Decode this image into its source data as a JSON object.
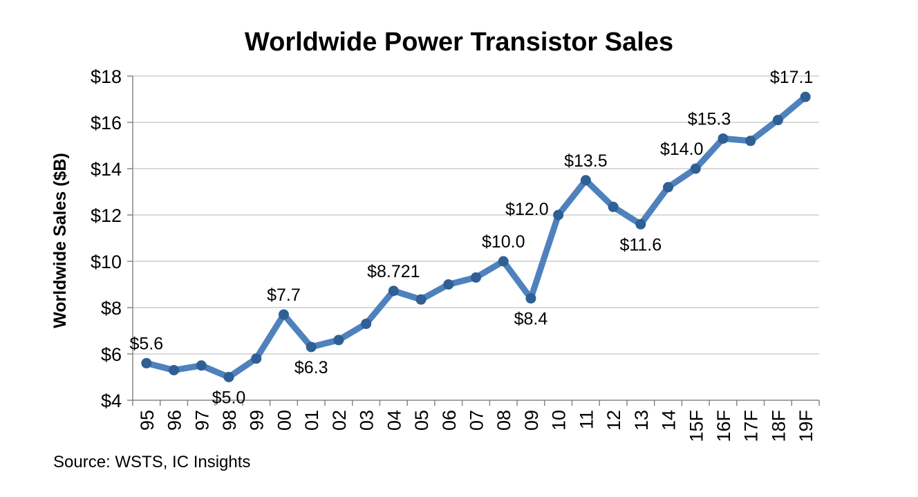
{
  "title": "Worldwide Power Transistor Sales",
  "source": "Source: WSTS, IC Insights",
  "colors": {
    "line": "#4f81bd",
    "marker": "#2f5f94",
    "grid": "#d9d9d9",
    "axis": "#868686",
    "text": "#000000"
  },
  "chart_data": {
    "type": "line",
    "title": "Worldwide Power Transistor Sales",
    "xlabel": "",
    "ylabel": "Worldwide Sales ($B)",
    "ylim": [
      4,
      18
    ],
    "ytick_step": 2,
    "ytick_labels": [
      "$4",
      "$6",
      "$8",
      "$10",
      "$12",
      "$14",
      "$16",
      "$18"
    ],
    "grid": true,
    "categories": [
      "95",
      "96",
      "97",
      "98",
      "99",
      "00",
      "01",
      "02",
      "03",
      "04",
      "05",
      "06",
      "07",
      "08",
      "09",
      "10",
      "11",
      "12",
      "13",
      "14",
      "15F",
      "16F",
      "17F",
      "18F",
      "19F"
    ],
    "series": [
      {
        "name": "Worldwide Sales",
        "values": [
          5.6,
          5.3,
          5.5,
          5.0,
          5.8,
          7.7,
          6.3,
          6.6,
          7.3,
          8.721,
          8.35,
          9.0,
          9.3,
          10.0,
          8.4,
          12.0,
          13.5,
          12.35,
          11.6,
          13.2,
          14.0,
          15.3,
          15.2,
          16.1,
          17.1
        ]
      }
    ],
    "data_labels": [
      {
        "index": 0,
        "text": "$5.6",
        "placement": "above"
      },
      {
        "index": 3,
        "text": "$5.0",
        "placement": "below"
      },
      {
        "index": 5,
        "text": "$7.7",
        "placement": "above"
      },
      {
        "index": 6,
        "text": "$6.3",
        "placement": "below"
      },
      {
        "index": 9,
        "text": "$8.721",
        "placement": "above"
      },
      {
        "index": 13,
        "text": "$10.0",
        "placement": "above"
      },
      {
        "index": 14,
        "text": "$8.4",
        "placement": "below"
      },
      {
        "index": 15,
        "text": "$12.0",
        "placement": "left"
      },
      {
        "index": 16,
        "text": "$13.5",
        "placement": "above"
      },
      {
        "index": 18,
        "text": "$11.6",
        "placement": "below"
      },
      {
        "index": 20,
        "text": "$14.0",
        "placement": "above-left"
      },
      {
        "index": 21,
        "text": "$15.3",
        "placement": "above-left"
      },
      {
        "index": 24,
        "text": "$17.1",
        "placement": "above-left"
      }
    ]
  }
}
